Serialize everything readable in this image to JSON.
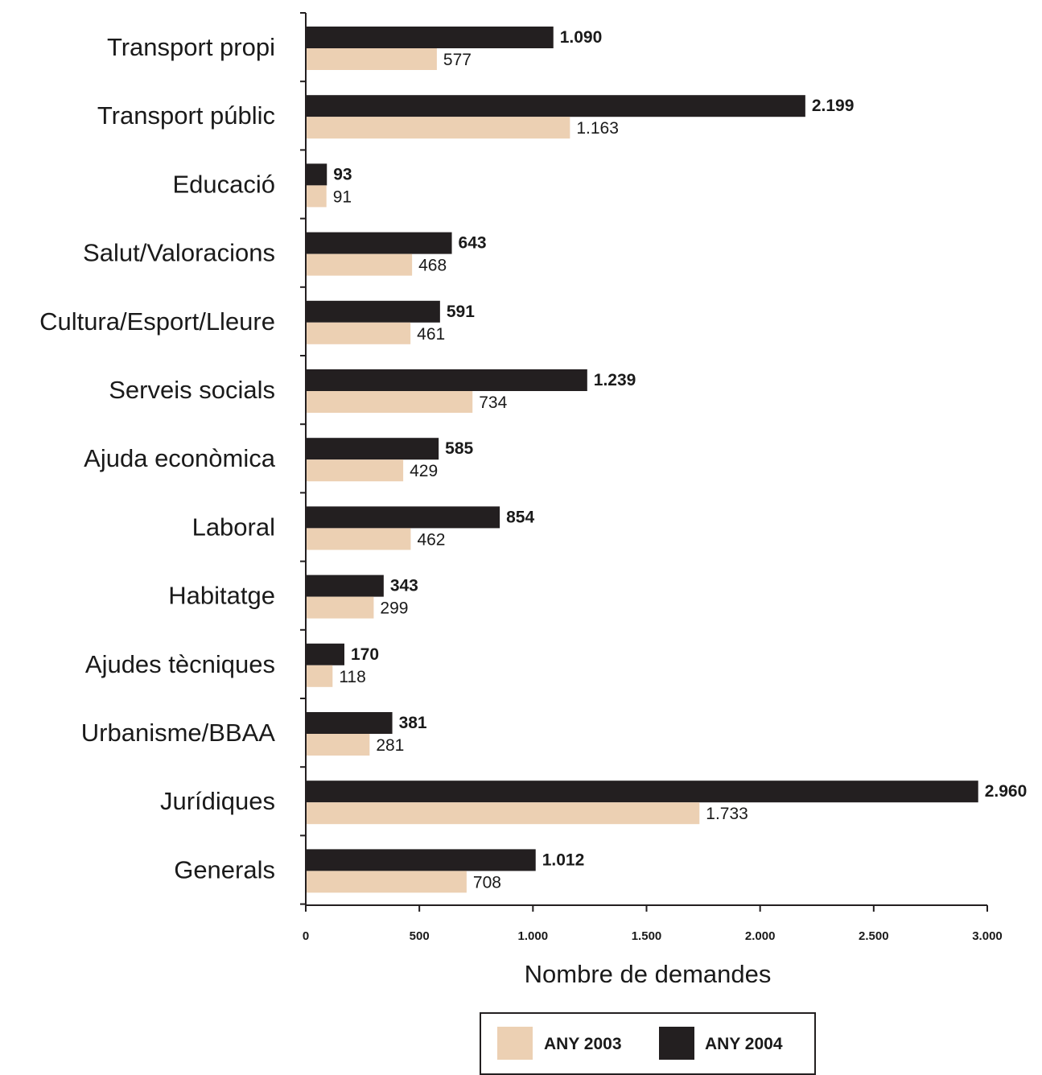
{
  "chart_data": {
    "type": "bar",
    "orientation": "horizontal",
    "categories": [
      "Transport propi",
      "Transport públic",
      "Educació",
      "Salut/Valoracions",
      "Cultura/Esport/Lleure",
      "Serveis socials",
      "Ajuda econòmica",
      "Laboral",
      "Habitatge",
      "Ajudes tècniques",
      "Urbanisme/BBAA",
      "Jurídiques",
      "Generals"
    ],
    "series": [
      {
        "name": "ANY 2004",
        "color": "#231f20",
        "values": [
          1090,
          2199,
          93,
          643,
          591,
          1239,
          585,
          854,
          343,
          170,
          381,
          2960,
          1012
        ],
        "labels": [
          "1.090",
          "2.199",
          "93",
          "643",
          "591",
          "1.239",
          "585",
          "854",
          "343",
          "170",
          "381",
          "2.960",
          "1.012"
        ]
      },
      {
        "name": "ANY 2003",
        "color": "#ecd0b3",
        "values": [
          577,
          1163,
          91,
          468,
          461,
          734,
          429,
          462,
          299,
          118,
          281,
          1733,
          708
        ],
        "labels": [
          "577",
          "1.163",
          "91",
          "468",
          "461",
          "734",
          "429",
          "462",
          "299",
          "118",
          "281",
          "1.733",
          "708"
        ]
      }
    ],
    "xlabel": "Nombre de demandes",
    "ylabel": "",
    "xlim": [
      0,
      3000
    ],
    "xticks": [
      0,
      500,
      1000,
      1500,
      2000,
      2500,
      3000
    ],
    "xtick_labels": [
      "0",
      "500",
      "1.000",
      "1.500",
      "2.000",
      "2.500",
      "3.000"
    ],
    "grid": false,
    "legend": {
      "placement": "bottom-right",
      "entries": [
        {
          "label": "ANY 2003",
          "color": "#ecd0b3"
        },
        {
          "label": "ANY 2004",
          "color": "#231f20"
        }
      ]
    }
  }
}
